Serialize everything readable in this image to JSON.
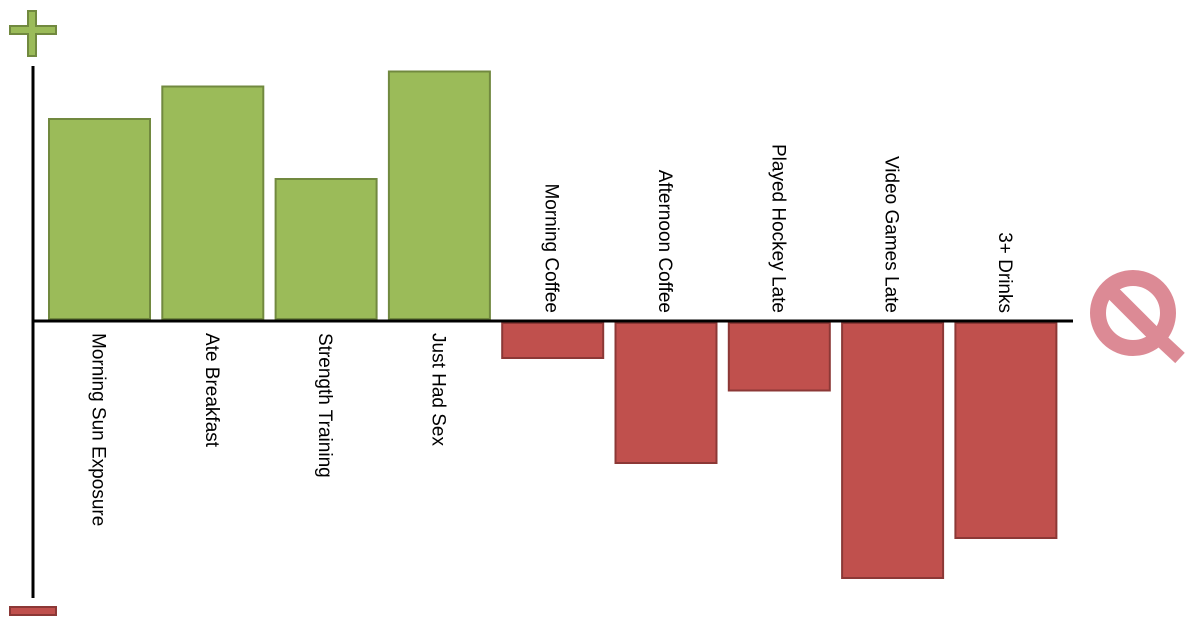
{
  "chart_data": {
    "type": "bar",
    "title": "",
    "xlabel": "",
    "ylabel": "",
    "categories": [
      "Morning Sun Exposure",
      "Ate Breakfast",
      "Strength Training",
      "Just Had Sex",
      "Morning Coffee",
      "Afternoon Coffee",
      "Played Hockey Late",
      "Video Games Late",
      "3+ Drinks"
    ],
    "values": [
      80,
      93,
      56,
      99,
      -14,
      -56,
      -27,
      -102,
      -86
    ],
    "ylim": [
      -110,
      100
    ],
    "grid": false,
    "legend": "none",
    "axis_markers": {
      "top": "plus-icon",
      "bottom": "minus-icon",
      "right": "prohibited-icon"
    },
    "colors": {
      "positive_fill": "#9bbb59",
      "positive_stroke": "#71893f",
      "negative_fill": "#c0504d",
      "negative_stroke": "#8c3836",
      "prohibited": "#dc8a95"
    }
  }
}
